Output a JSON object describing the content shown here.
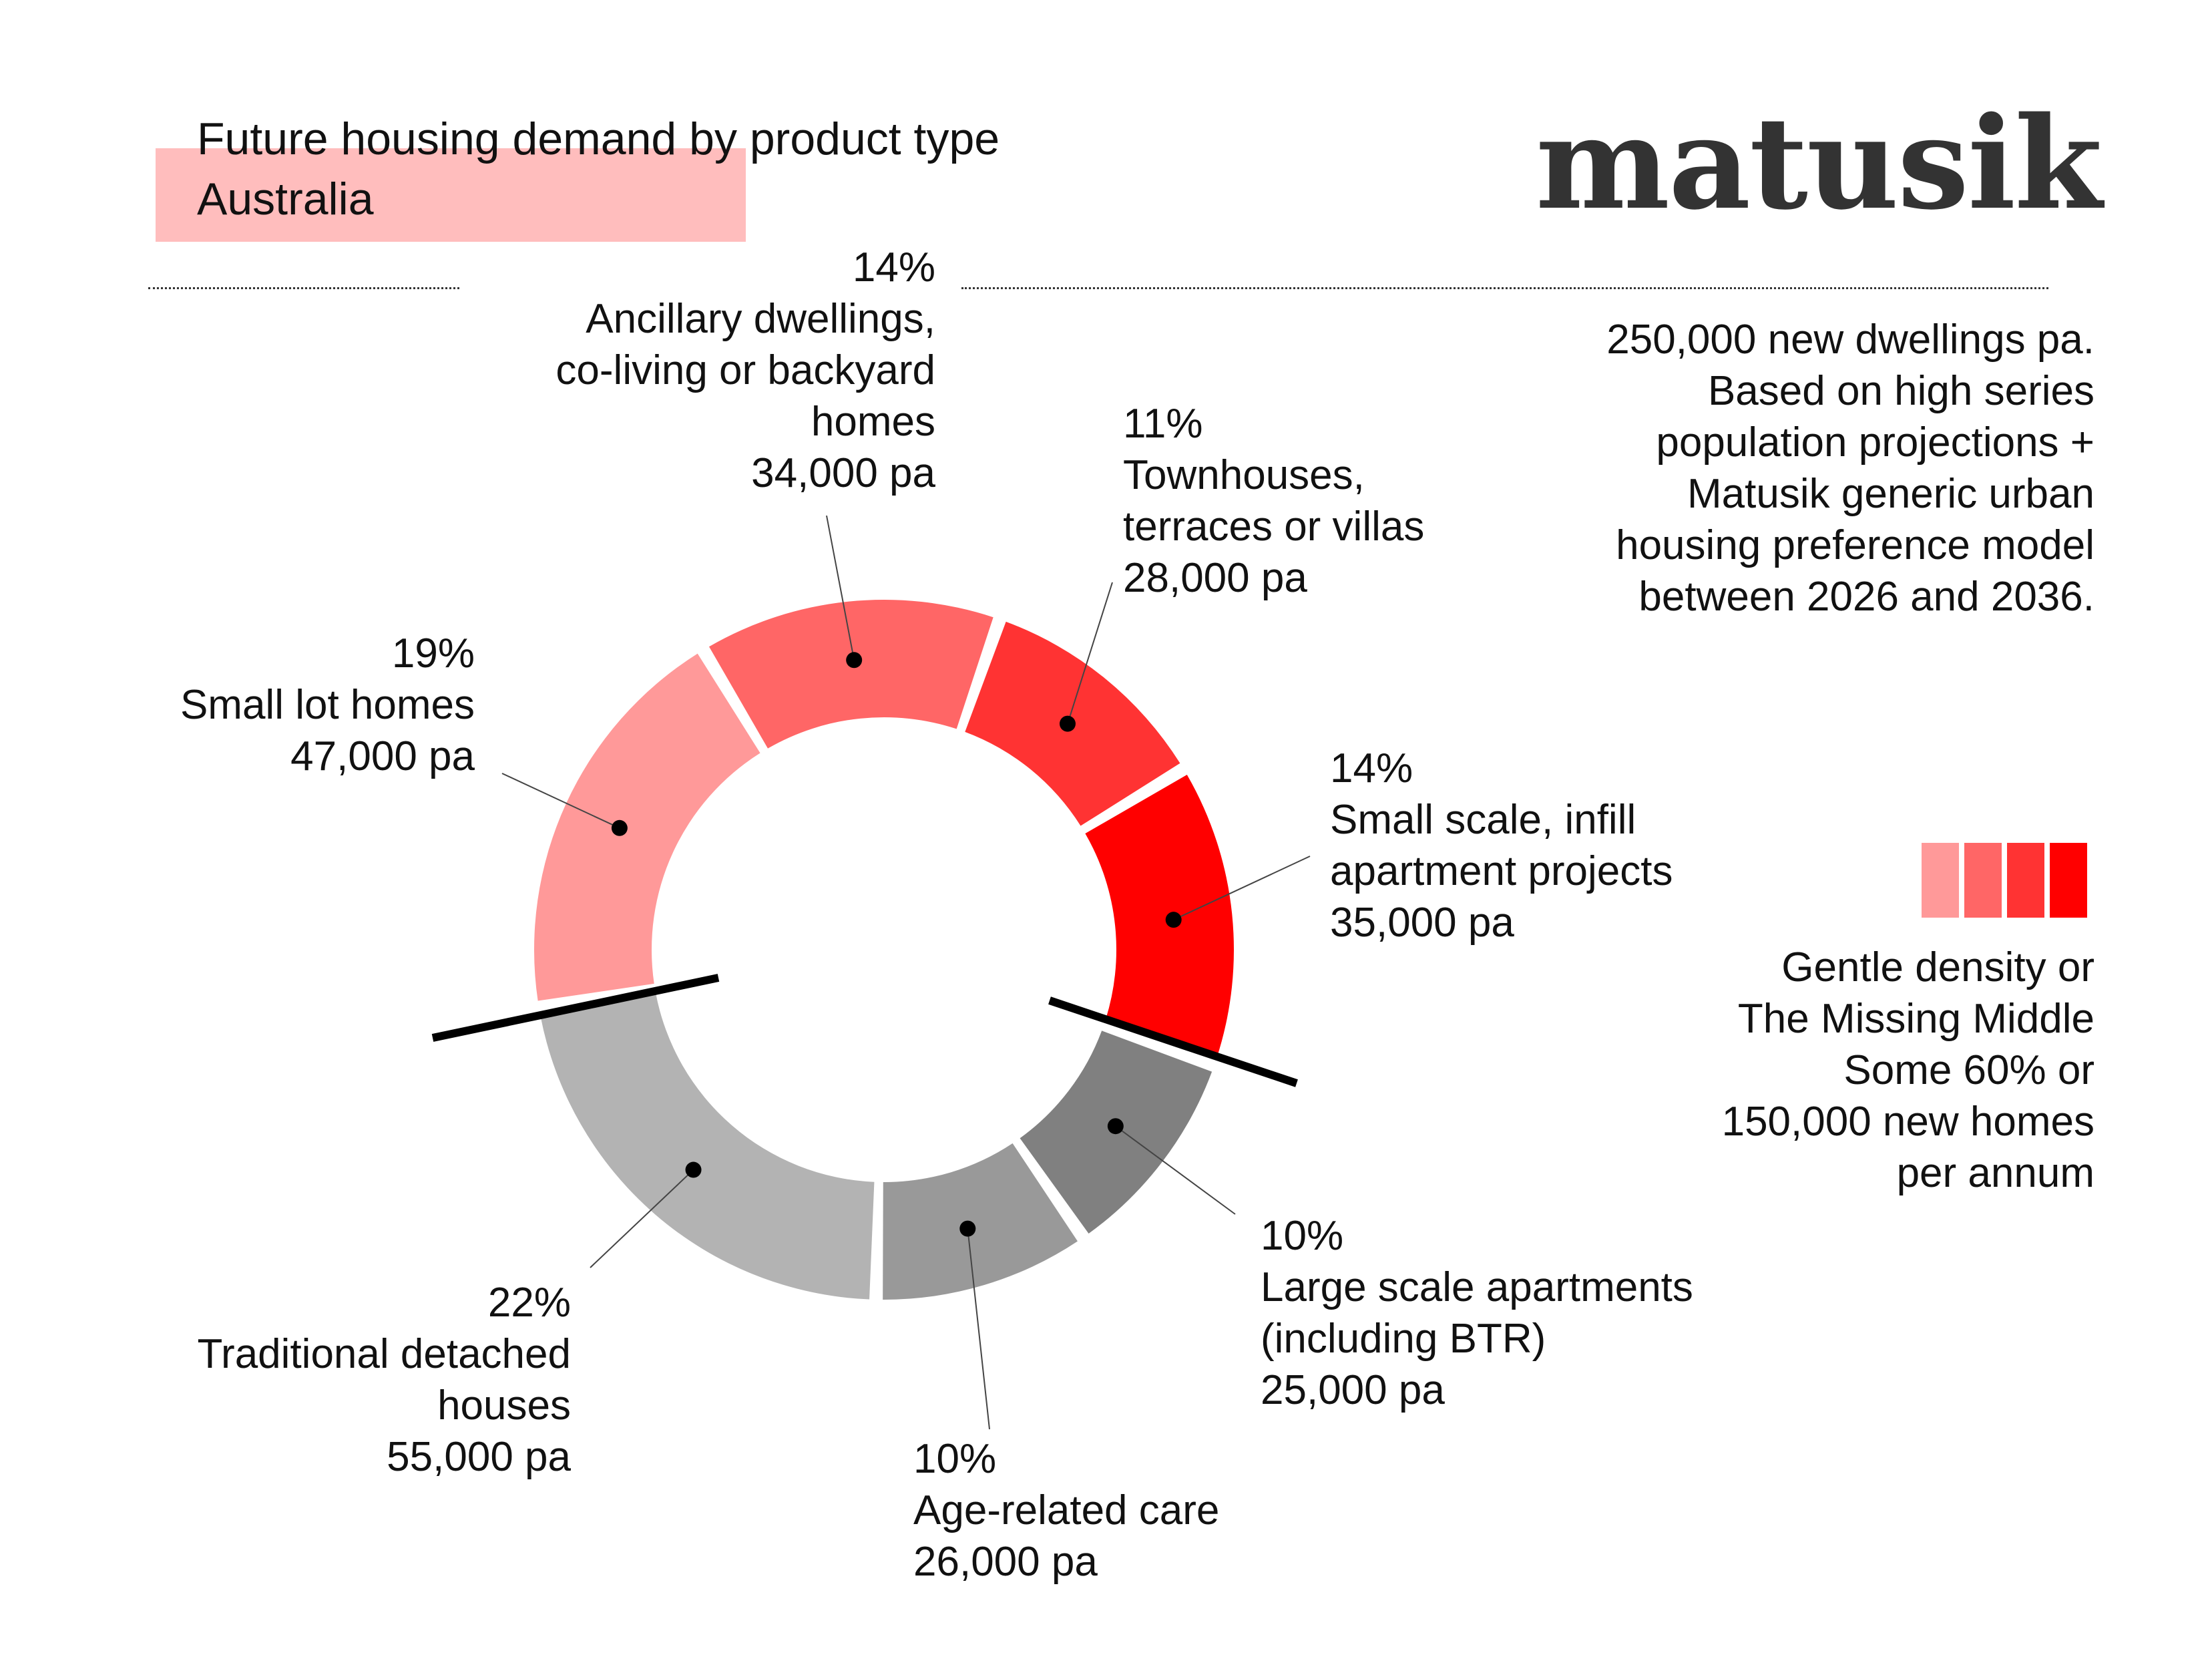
{
  "header": {
    "title": "Future housing demand by product type",
    "subtitle": "Australia",
    "logo": "matusik"
  },
  "note": {
    "line1": "250,000 new dwellings pa.",
    "line2": "Based on high series",
    "line3": "population projections +",
    "line4": "Matusik generic urban",
    "line5": "housing preference model",
    "line6": "between 2026 and 2036."
  },
  "legend": {
    "colors": [
      "#ff9999",
      "#ff6666",
      "#ff3333",
      "#ff0000"
    ],
    "line1": "Gentle density or",
    "line2": "The Missing Middle",
    "line3": "Some 60% or",
    "line4": "150,000 new homes",
    "line5": "per annum"
  },
  "labels": {
    "ancillary": {
      "pct": "14%",
      "l1": "Ancillary dwellings,",
      "l2": "co-living or backyard",
      "l3": "homes",
      "pa": "34,000 pa"
    },
    "townhouses": {
      "pct": "11%",
      "l1": "Townhouses,",
      "l2": "terraces or villas",
      "pa": "28,000 pa"
    },
    "small_lot": {
      "pct": "19%",
      "l1": "Small lot homes",
      "pa": "47,000 pa"
    },
    "infill": {
      "pct": "14%",
      "l1": "Small scale, infill",
      "l2": "apartment projects",
      "pa": "35,000 pa"
    },
    "large_scale": {
      "pct": "10%",
      "l1": "Large scale apartments",
      "l2": "(including BTR)",
      "pa": "25,000 pa"
    },
    "age_care": {
      "pct": "10%",
      "l1": "Age-related care",
      "pa": "26,000 pa"
    },
    "detached": {
      "pct": "22%",
      "l1": "Traditional detached",
      "l2": "houses",
      "pa": "55,000 pa"
    }
  },
  "chart_data": {
    "type": "pie",
    "title": "Future housing demand by product type",
    "subtitle": "Australia",
    "total_label": "250,000 new dwellings pa.",
    "slices": [
      {
        "label": "Small lot homes",
        "percent": 19,
        "value": 47000,
        "color": "#ff9999",
        "group": "gentle density"
      },
      {
        "label": "Ancillary dwellings, co-living or backyard homes",
        "percent": 14,
        "value": 34000,
        "color": "#ff6666",
        "group": "gentle density"
      },
      {
        "label": "Townhouses, terraces or villas",
        "percent": 11,
        "value": 28000,
        "color": "#ff3333",
        "group": "gentle density"
      },
      {
        "label": "Small scale, infill apartment projects",
        "percent": 14,
        "value": 35000,
        "color": "#ff0000",
        "group": "gentle density"
      },
      {
        "label": "Large scale apartments (including BTR)",
        "percent": 10,
        "value": 25000,
        "color": "#808080",
        "group": "other"
      },
      {
        "label": "Age-related care",
        "percent": 10,
        "value": 26000,
        "color": "#999999",
        "group": "other"
      },
      {
        "label": "Traditional detached houses",
        "percent": 22,
        "value": 55000,
        "color": "#b3b3b3",
        "group": "other"
      }
    ]
  }
}
